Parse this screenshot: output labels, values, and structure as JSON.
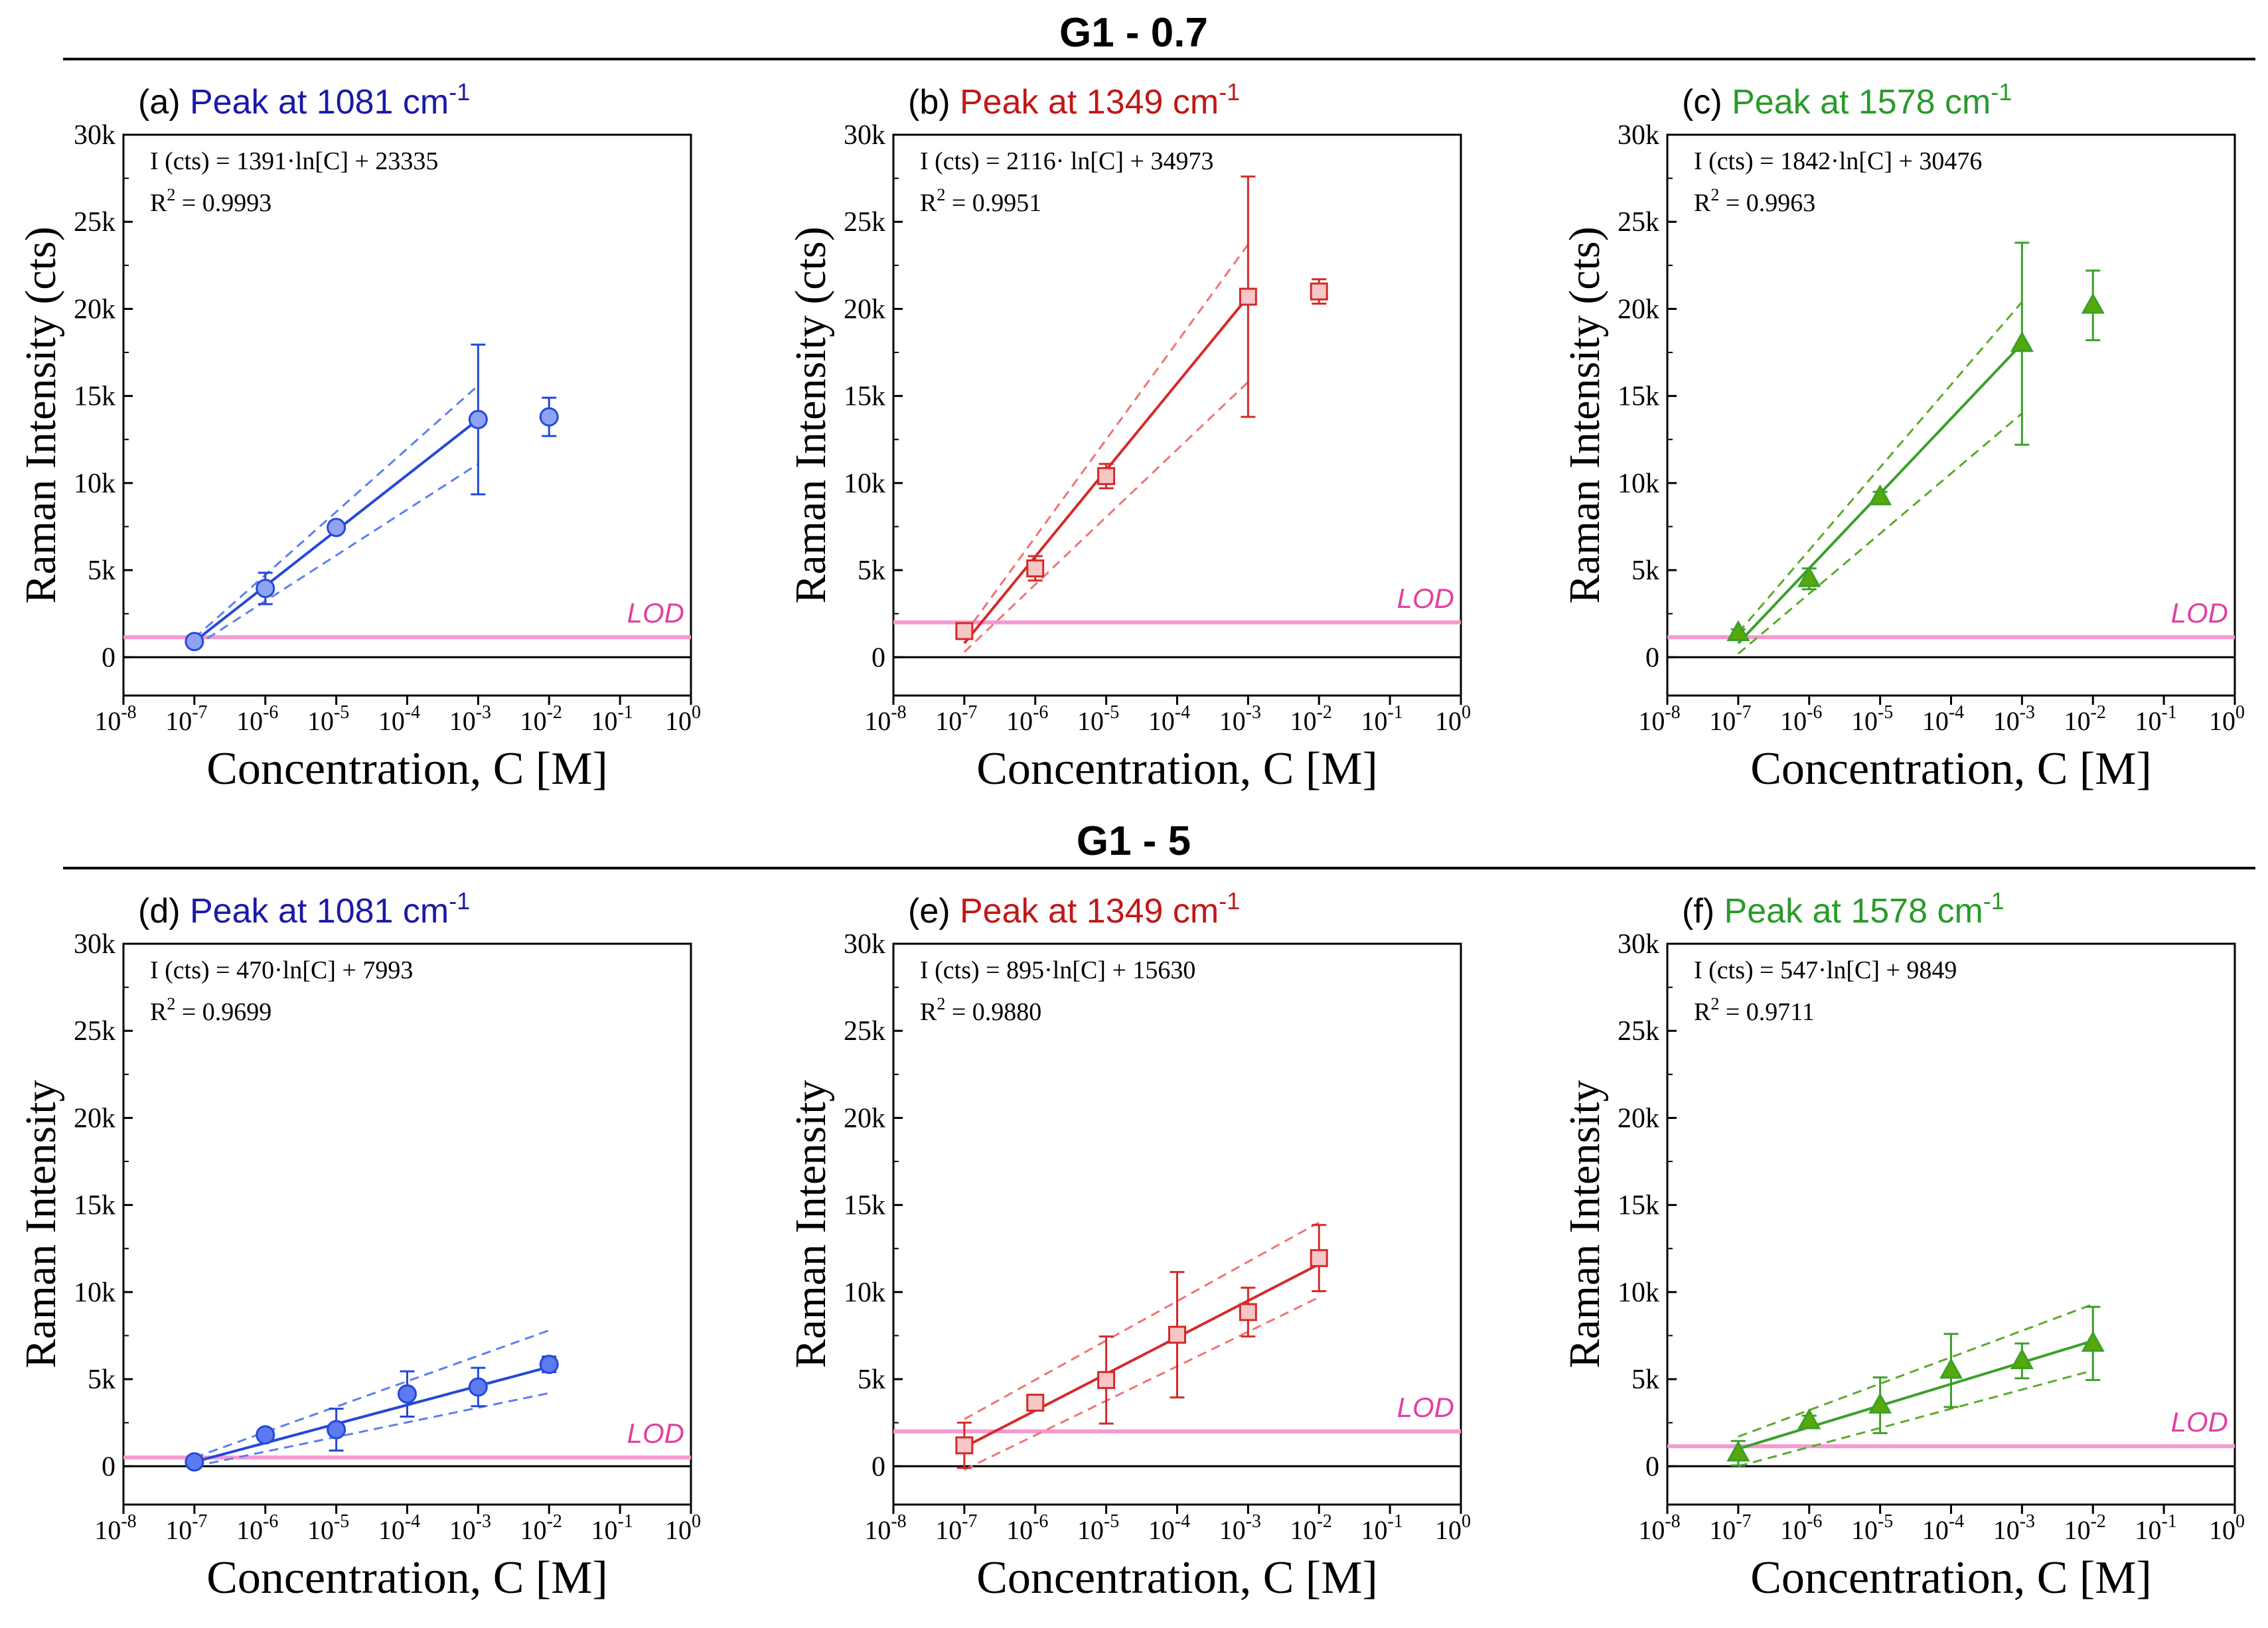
{
  "group_titles": [
    "G1 - 0.7",
    "G1 - 5"
  ],
  "colors": {
    "blue": "#1a1aa6",
    "blue_marker": "#5e7af0",
    "blue_line": "#2448d8",
    "blue_dash": "#5b7ff0",
    "red": "#c01818",
    "red_marker": "#f7c6c6",
    "red_line": "#d42a2a",
    "red_dash": "#f07474",
    "green": "#2a9a2a",
    "green_marker": "#56a80c",
    "green_line": "#3aa02a",
    "green_dash": "#5aaa2a",
    "lod": "#f59ad0",
    "lod_text": "#e040a0",
    "axis": "#000000"
  },
  "chart_data": [
    {
      "id": "a",
      "panel_label": "(a)",
      "title": "Peak at 1081 cm",
      "title_sup": "-1",
      "color": "blue",
      "type": "scatter",
      "marker": "circle",
      "filled": false,
      "xlabel": "Concentration, C [M]",
      "ylabel": "Raman Intensity (cts)",
      "x_exponents": [
        -8,
        -7,
        -6,
        -5,
        -4,
        -3,
        -2,
        -1,
        0
      ],
      "x_tick_labels": [
        "10",
        "10",
        "10",
        "10",
        "10",
        "10",
        "10",
        "10",
        "10"
      ],
      "x_tick_sup": [
        "-8",
        "-7",
        "-6",
        "-5",
        "-4",
        "-3",
        "-2",
        "-1",
        "0"
      ],
      "y_ticks": [
        0,
        5000,
        10000,
        15000,
        20000,
        25000,
        30000
      ],
      "y_tick_labels": [
        "0",
        "5k",
        "10k",
        "15k",
        "20k",
        "25k",
        "30k"
      ],
      "ylim": [
        -2200,
        30000
      ],
      "xlim": [
        -8,
        0
      ],
      "equation": "I (cts) = 1391·ln[C] + 23335",
      "r2_label": "R",
      "r2_value": " = 0.9993",
      "points": [
        {
          "x": -7,
          "y": 900,
          "err": 250
        },
        {
          "x": -6,
          "y": 3950,
          "err": 900
        },
        {
          "x": -5,
          "y": 7450,
          "err": 300
        },
        {
          "x": -3,
          "y": 13650,
          "err": 4300
        },
        {
          "x": -2,
          "y": 13800,
          "err": 1100
        }
      ],
      "fit": {
        "x": [
          -7,
          -3
        ],
        "y": [
          900,
          13650
        ]
      },
      "conf_upper": {
        "x": [
          -7,
          -3
        ],
        "y": [
          1100,
          15600
        ]
      },
      "conf_lower": {
        "x": [
          -7,
          -3
        ],
        "y": [
          600,
          11100
        ]
      },
      "lod": 1150,
      "lod_label": "LOD"
    },
    {
      "id": "b",
      "panel_label": "(b)",
      "title": "Peak at 1349 cm",
      "title_sup": "-1",
      "color": "red",
      "type": "scatter",
      "marker": "square",
      "filled": false,
      "xlabel": "Concentration, C [M]",
      "ylabel": "Raman Intensity (cts)",
      "x_exponents": [
        -8,
        -7,
        -6,
        -5,
        -4,
        -3,
        -2,
        -1,
        0
      ],
      "x_tick_labels": [
        "10",
        "10",
        "10",
        "10",
        "10",
        "10",
        "10",
        "10",
        "10"
      ],
      "x_tick_sup": [
        "-8",
        "-7",
        "-6",
        "-5",
        "-4",
        "-3",
        "-2",
        "-1",
        "0"
      ],
      "y_ticks": [
        0,
        5000,
        10000,
        15000,
        20000,
        25000,
        30000
      ],
      "y_tick_labels": [
        "0",
        "5k",
        "10k",
        "15k",
        "20k",
        "25k",
        "30k"
      ],
      "ylim": [
        -2200,
        30000
      ],
      "xlim": [
        -8,
        0
      ],
      "equation": "I (cts) = 2116· ln[C] + 34973",
      "r2_label": "R",
      "r2_value": " = 0.9951",
      "points": [
        {
          "x": -7,
          "y": 1500,
          "err": 350
        },
        {
          "x": -6,
          "y": 5100,
          "err": 700
        },
        {
          "x": -5,
          "y": 10400,
          "err": 700
        },
        {
          "x": -3,
          "y": 20700,
          "err": 6900
        },
        {
          "x": -2,
          "y": 21000,
          "err": 700
        }
      ],
      "fit": {
        "x": [
          -7,
          -3
        ],
        "y": [
          800,
          20700
        ]
      },
      "conf_upper": {
        "x": [
          -7,
          -3
        ],
        "y": [
          1300,
          23700
        ]
      },
      "conf_lower": {
        "x": [
          -7,
          -3
        ],
        "y": [
          300,
          15800
        ]
      },
      "lod": 2000,
      "lod_label": "LOD"
    },
    {
      "id": "c",
      "panel_label": "(c)",
      "title": "Peak at 1578 cm",
      "title_sup": "-1",
      "color": "green",
      "type": "scatter",
      "marker": "triangle",
      "filled": true,
      "xlabel": "Concentration, C [M]",
      "ylabel": "Raman Intensity (cts)",
      "x_exponents": [
        -8,
        -7,
        -6,
        -5,
        -4,
        -3,
        -2,
        -1,
        0
      ],
      "x_tick_labels": [
        "10",
        "10",
        "10",
        "10",
        "10",
        "10",
        "10",
        "10",
        "10"
      ],
      "x_tick_sup": [
        "-8",
        "-7",
        "-6",
        "-5",
        "-4",
        "-3",
        "-2",
        "-1",
        "0"
      ],
      "y_ticks": [
        0,
        5000,
        10000,
        15000,
        20000,
        25000,
        30000
      ],
      "y_tick_labels": [
        "0",
        "5k",
        "10k",
        "15k",
        "20k",
        "25k",
        "30k"
      ],
      "ylim": [
        -2200,
        30000
      ],
      "xlim": [
        -8,
        0
      ],
      "equation": "I (cts) = 1842·ln[C] + 30476",
      "r2_label": "R",
      "r2_value": " = 0.9963",
      "points": [
        {
          "x": -7,
          "y": 1400,
          "err": 200
        },
        {
          "x": -6,
          "y": 4500,
          "err": 600
        },
        {
          "x": -5,
          "y": 9200,
          "err": 300
        },
        {
          "x": -3,
          "y": 18000,
          "err": 5800
        },
        {
          "x": -2,
          "y": 20200,
          "err": 2000
        }
      ],
      "fit": {
        "x": [
          -7,
          -3
        ],
        "y": [
          800,
          18000
        ]
      },
      "conf_upper": {
        "x": [
          -7,
          -3
        ],
        "y": [
          1400,
          20400
        ]
      },
      "conf_lower": {
        "x": [
          -7,
          -3
        ],
        "y": [
          200,
          14000
        ]
      },
      "lod": 1150,
      "lod_label": "LOD"
    },
    {
      "id": "d",
      "panel_label": "(d)",
      "title": "Peak at 1081 cm",
      "title_sup": "-1",
      "color": "blue",
      "type": "scatter",
      "marker": "circle",
      "filled": true,
      "xlabel": "Concentration, C [M]",
      "ylabel": "Raman Intensity",
      "x_exponents": [
        -8,
        -7,
        -6,
        -5,
        -4,
        -3,
        -2,
        -1,
        0
      ],
      "x_tick_labels": [
        "10",
        "10",
        "10",
        "10",
        "10",
        "10",
        "10",
        "10",
        "10"
      ],
      "x_tick_sup": [
        "-8",
        "-7",
        "-6",
        "-5",
        "-4",
        "-3",
        "-2",
        "-1",
        "0"
      ],
      "y_ticks": [
        0,
        5000,
        10000,
        15000,
        20000,
        25000,
        30000
      ],
      "y_tick_labels": [
        "0",
        "5k",
        "10k",
        "15k",
        "20k",
        "25k",
        "30k"
      ],
      "ylim": [
        -2200,
        30000
      ],
      "xlim": [
        -8,
        0
      ],
      "equation": "I (cts) = 470·ln[C] + 7993",
      "r2_label": "R",
      "r2_value": " = 0.9699",
      "points": [
        {
          "x": -7,
          "y": 250,
          "err": 150
        },
        {
          "x": -6,
          "y": 1800,
          "err": 300
        },
        {
          "x": -5,
          "y": 2100,
          "err": 1200
        },
        {
          "x": -4,
          "y": 4150,
          "err": 1300
        },
        {
          "x": -3,
          "y": 4550,
          "err": 1100
        },
        {
          "x": -2,
          "y": 5850,
          "err": 450
        }
      ],
      "fit": {
        "x": [
          -7,
          -2
        ],
        "y": [
          250,
          5700
        ]
      },
      "conf_upper": {
        "x": [
          -7,
          -2
        ],
        "y": [
          500,
          7800
        ]
      },
      "conf_lower": {
        "x": [
          -7,
          -2
        ],
        "y": [
          0,
          4200
        ]
      },
      "lod": 500,
      "lod_label": "LOD"
    },
    {
      "id": "e",
      "panel_label": "(e)",
      "title": "Peak at 1349 cm",
      "title_sup": "-1",
      "color": "red",
      "type": "scatter",
      "marker": "square",
      "filled": false,
      "xlabel": "Concentration, C [M]",
      "ylabel": "Raman Intensity",
      "x_exponents": [
        -8,
        -7,
        -6,
        -5,
        -4,
        -3,
        -2,
        -1,
        0
      ],
      "x_tick_labels": [
        "10",
        "10",
        "10",
        "10",
        "10",
        "10",
        "10",
        "10",
        "10"
      ],
      "x_tick_sup": [
        "-8",
        "-7",
        "-6",
        "-5",
        "-4",
        "-3",
        "-2",
        "-1",
        "0"
      ],
      "y_ticks": [
        0,
        5000,
        10000,
        15000,
        20000,
        25000,
        30000
      ],
      "y_tick_labels": [
        "0",
        "5k",
        "10k",
        "15k",
        "20k",
        "25k",
        "30k"
      ],
      "ylim": [
        -2200,
        30000
      ],
      "xlim": [
        -8,
        0
      ],
      "equation": "I (cts) = 895·ln[C] + 15630",
      "r2_label": "R",
      "r2_value": " = 0.9880",
      "points": [
        {
          "x": -7,
          "y": 1200,
          "err": 1300
        },
        {
          "x": -6,
          "y": 3650,
          "err": 250
        },
        {
          "x": -5,
          "y": 4950,
          "err": 2500
        },
        {
          "x": -4,
          "y": 7550,
          "err": 3600
        },
        {
          "x": -3,
          "y": 8850,
          "err": 1400
        },
        {
          "x": -2,
          "y": 11950,
          "err": 1900
        }
      ],
      "fit": {
        "x": [
          -7,
          -2
        ],
        "y": [
          1100,
          11600
        ]
      },
      "conf_upper": {
        "x": [
          -7,
          -2
        ],
        "y": [
          2700,
          14000
        ]
      },
      "conf_lower": {
        "x": [
          -7,
          -2
        ],
        "y": [
          -200,
          9700
        ]
      },
      "lod": 2000,
      "lod_label": "LOD"
    },
    {
      "id": "f",
      "panel_label": "(f)",
      "title": "Peak at 1578 cm",
      "title_sup": "-1",
      "color": "green",
      "type": "scatter",
      "marker": "triangle",
      "filled": true,
      "xlabel": "Concentration, C [M]",
      "ylabel": "Raman Intensity",
      "x_exponents": [
        -8,
        -7,
        -6,
        -5,
        -4,
        -3,
        -2,
        -1,
        0
      ],
      "x_tick_labels": [
        "10",
        "10",
        "10",
        "10",
        "10",
        "10",
        "10",
        "10",
        "10"
      ],
      "x_tick_sup": [
        "-8",
        "-7",
        "-6",
        "-5",
        "-4",
        "-3",
        "-2",
        "-1",
        "0"
      ],
      "y_ticks": [
        0,
        5000,
        10000,
        15000,
        20000,
        25000,
        30000
      ],
      "y_tick_labels": [
        "0",
        "5k",
        "10k",
        "15k",
        "20k",
        "25k",
        "30k"
      ],
      "ylim": [
        -2200,
        30000
      ],
      "xlim": [
        -8,
        0
      ],
      "equation": "I (cts) = 547·ln[C] + 9849",
      "r2_label": "R",
      "r2_value": " = 0.9711",
      "points": [
        {
          "x": -7,
          "y": 750,
          "err": 700
        },
        {
          "x": -6,
          "y": 2600,
          "err": 300
        },
        {
          "x": -5,
          "y": 3500,
          "err": 1600
        },
        {
          "x": -4,
          "y": 5500,
          "err": 2100
        },
        {
          "x": -3,
          "y": 6050,
          "err": 1000
        },
        {
          "x": -2,
          "y": 7050,
          "err": 2100
        }
      ],
      "fit": {
        "x": [
          -7,
          -2
        ],
        "y": [
          1000,
          7200
        ]
      },
      "conf_upper": {
        "x": [
          -7,
          -2
        ],
        "y": [
          1700,
          9300
        ]
      },
      "conf_lower": {
        "x": [
          -7,
          -2
        ],
        "y": [
          0,
          5500
        ]
      },
      "lod": 1150,
      "lod_label": "LOD"
    }
  ]
}
